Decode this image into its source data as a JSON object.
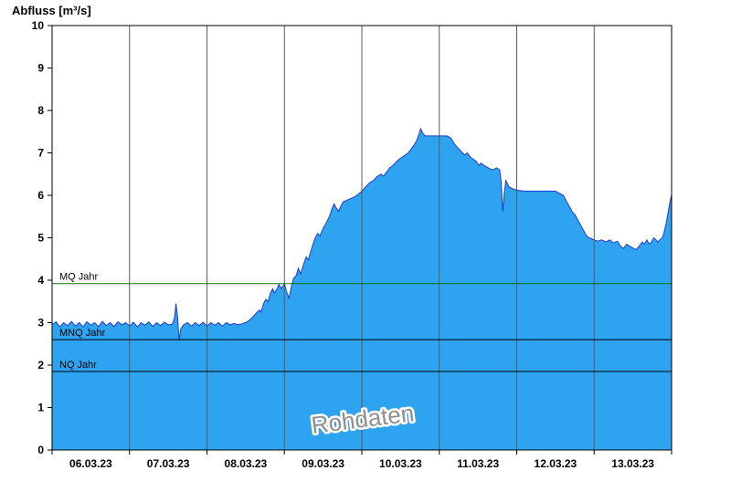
{
  "colors": {
    "area_fill": "#2ea3f0",
    "area_line": "#1f3cc8",
    "grid_line": "#5a5a5a",
    "axis": "#000000",
    "mq_line": "#007700",
    "ref_line": "#000000",
    "watermark": "#8f8f8f"
  },
  "chart_data": {
    "type": "area",
    "title": "Abfluss [m³/s]",
    "ylabel": "Abfluss [m³/s]",
    "xlabel": "",
    "ylim": [
      0,
      10
    ],
    "yticks": [
      0,
      1,
      2,
      3,
      4,
      5,
      6,
      7,
      8,
      9,
      10
    ],
    "x_tick_labels": [
      "06.03.23",
      "07.03.23",
      "08.03.23",
      "09.03.23",
      "10.03.23",
      "11.03.23",
      "12.03.23",
      "13.03.23"
    ],
    "x_unit": "days from 06.03.23 00:00",
    "grid": "vertical-daily",
    "legend": "none",
    "watermark": "Rohdaten",
    "reference_lines": [
      {
        "label": "MQ Jahr",
        "value": 3.92,
        "color": "#007700"
      },
      {
        "label": "MNQ Jahr",
        "value": 2.6,
        "color": "#000000"
      },
      {
        "label": "NQ Jahr",
        "value": 1.85,
        "color": "#000000"
      }
    ],
    "series": [
      {
        "name": "Abfluss Rohdaten",
        "points": [
          [
            0.0,
            2.95
          ],
          [
            0.05,
            3.02
          ],
          [
            0.1,
            2.9
          ],
          [
            0.15,
            3.0
          ],
          [
            0.2,
            2.93
          ],
          [
            0.25,
            3.03
          ],
          [
            0.3,
            2.92
          ],
          [
            0.35,
            3.0
          ],
          [
            0.4,
            2.9
          ],
          [
            0.45,
            3.02
          ],
          [
            0.5,
            2.94
          ],
          [
            0.55,
            3.0
          ],
          [
            0.6,
            2.9
          ],
          [
            0.65,
            3.03
          ],
          [
            0.7,
            2.93
          ],
          [
            0.75,
            3.0
          ],
          [
            0.8,
            2.91
          ],
          [
            0.85,
            3.02
          ],
          [
            0.9,
            2.95
          ],
          [
            0.95,
            3.0
          ],
          [
            1.0,
            2.92
          ],
          [
            1.05,
            3.01
          ],
          [
            1.1,
            2.9
          ],
          [
            1.15,
            3.0
          ],
          [
            1.2,
            2.94
          ],
          [
            1.25,
            3.02
          ],
          [
            1.3,
            2.91
          ],
          [
            1.35,
            3.0
          ],
          [
            1.4,
            2.93
          ],
          [
            1.45,
            3.01
          ],
          [
            1.5,
            2.95
          ],
          [
            1.55,
            2.96
          ],
          [
            1.58,
            3.1
          ],
          [
            1.6,
            3.45
          ],
          [
            1.62,
            3.15
          ],
          [
            1.64,
            2.58
          ],
          [
            1.66,
            2.85
          ],
          [
            1.7,
            2.95
          ],
          [
            1.75,
            3.0
          ],
          [
            1.8,
            2.92
          ],
          [
            1.85,
            3.0
          ],
          [
            1.9,
            2.93
          ],
          [
            1.95,
            3.01
          ],
          [
            2.0,
            2.92
          ],
          [
            2.05,
            3.0
          ],
          [
            2.1,
            2.94
          ],
          [
            2.15,
            3.0
          ],
          [
            2.2,
            2.92
          ],
          [
            2.25,
            3.0
          ],
          [
            2.3,
            2.95
          ],
          [
            2.35,
            2.98
          ],
          [
            2.4,
            2.95
          ],
          [
            2.45,
            2.97
          ],
          [
            2.5,
            3.0
          ],
          [
            2.55,
            3.06
          ],
          [
            2.6,
            3.15
          ],
          [
            2.65,
            3.25
          ],
          [
            2.68,
            3.3
          ],
          [
            2.7,
            3.25
          ],
          [
            2.73,
            3.45
          ],
          [
            2.76,
            3.55
          ],
          [
            2.79,
            3.5
          ],
          [
            2.82,
            3.7
          ],
          [
            2.85,
            3.8
          ],
          [
            2.87,
            3.7
          ],
          [
            2.9,
            3.78
          ],
          [
            2.93,
            3.9
          ],
          [
            2.96,
            3.8
          ],
          [
            3.0,
            3.92
          ],
          [
            3.03,
            3.72
          ],
          [
            3.06,
            3.58
          ],
          [
            3.09,
            3.85
          ],
          [
            3.12,
            4.05
          ],
          [
            3.15,
            4.1
          ],
          [
            3.18,
            4.28
          ],
          [
            3.21,
            4.15
          ],
          [
            3.25,
            4.38
          ],
          [
            3.28,
            4.55
          ],
          [
            3.31,
            4.48
          ],
          [
            3.34,
            4.68
          ],
          [
            3.37,
            4.85
          ],
          [
            3.4,
            5.0
          ],
          [
            3.43,
            5.1
          ],
          [
            3.46,
            5.05
          ],
          [
            3.5,
            5.22
          ],
          [
            3.54,
            5.35
          ],
          [
            3.58,
            5.5
          ],
          [
            3.61,
            5.65
          ],
          [
            3.64,
            5.8
          ],
          [
            3.67,
            5.7
          ],
          [
            3.7,
            5.62
          ],
          [
            3.73,
            5.75
          ],
          [
            3.76,
            5.85
          ],
          [
            3.8,
            5.88
          ],
          [
            3.85,
            5.92
          ],
          [
            3.9,
            5.96
          ],
          [
            3.95,
            6.02
          ],
          [
            4.0,
            6.1
          ],
          [
            4.05,
            6.2
          ],
          [
            4.1,
            6.3
          ],
          [
            4.15,
            6.35
          ],
          [
            4.2,
            6.45
          ],
          [
            4.25,
            6.5
          ],
          [
            4.28,
            6.45
          ],
          [
            4.32,
            6.55
          ],
          [
            4.36,
            6.65
          ],
          [
            4.4,
            6.7
          ],
          [
            4.44,
            6.78
          ],
          [
            4.48,
            6.85
          ],
          [
            4.52,
            6.9
          ],
          [
            4.56,
            6.95
          ],
          [
            4.6,
            7.0
          ],
          [
            4.64,
            7.1
          ],
          [
            4.68,
            7.2
          ],
          [
            4.71,
            7.3
          ],
          [
            4.74,
            7.45
          ],
          [
            4.76,
            7.57
          ],
          [
            4.79,
            7.45
          ],
          [
            4.82,
            7.4
          ],
          [
            4.9,
            7.4
          ],
          [
            5.0,
            7.4
          ],
          [
            5.1,
            7.4
          ],
          [
            5.15,
            7.35
          ],
          [
            5.2,
            7.2
          ],
          [
            5.25,
            7.1
          ],
          [
            5.3,
            7.0
          ],
          [
            5.33,
            6.95
          ],
          [
            5.36,
            7.0
          ],
          [
            5.4,
            6.9
          ],
          [
            5.44,
            6.85
          ],
          [
            5.48,
            6.8
          ],
          [
            5.51,
            6.7
          ],
          [
            5.54,
            6.76
          ],
          [
            5.58,
            6.7
          ],
          [
            5.62,
            6.66
          ],
          [
            5.66,
            6.62
          ],
          [
            5.7,
            6.6
          ],
          [
            5.74,
            6.65
          ],
          [
            5.78,
            6.6
          ],
          [
            5.8,
            6.3
          ],
          [
            5.82,
            5.62
          ],
          [
            5.84,
            6.05
          ],
          [
            5.86,
            6.35
          ],
          [
            5.9,
            6.2
          ],
          [
            5.95,
            6.15
          ],
          [
            6.0,
            6.12
          ],
          [
            6.1,
            6.1
          ],
          [
            6.2,
            6.1
          ],
          [
            6.3,
            6.1
          ],
          [
            6.4,
            6.1
          ],
          [
            6.5,
            6.1
          ],
          [
            6.55,
            6.05
          ],
          [
            6.6,
            6.0
          ],
          [
            6.63,
            5.9
          ],
          [
            6.66,
            5.8
          ],
          [
            6.69,
            5.7
          ],
          [
            6.72,
            5.6
          ],
          [
            6.75,
            5.55
          ],
          [
            6.78,
            5.45
          ],
          [
            6.81,
            5.35
          ],
          [
            6.84,
            5.25
          ],
          [
            6.87,
            5.15
          ],
          [
            6.9,
            5.05
          ],
          [
            6.93,
            5.0
          ],
          [
            6.96,
            4.98
          ],
          [
            7.0,
            4.95
          ],
          [
            7.05,
            4.92
          ],
          [
            7.1,
            4.95
          ],
          [
            7.15,
            4.9
          ],
          [
            7.2,
            4.95
          ],
          [
            7.25,
            4.88
          ],
          [
            7.3,
            4.92
          ],
          [
            7.34,
            4.8
          ],
          [
            7.38,
            4.75
          ],
          [
            7.42,
            4.85
          ],
          [
            7.46,
            4.8
          ],
          [
            7.5,
            4.76
          ],
          [
            7.54,
            4.72
          ],
          [
            7.58,
            4.8
          ],
          [
            7.62,
            4.9
          ],
          [
            7.65,
            4.85
          ],
          [
            7.68,
            4.95
          ],
          [
            7.71,
            4.85
          ],
          [
            7.74,
            4.9
          ],
          [
            7.77,
            5.0
          ],
          [
            7.8,
            4.95
          ],
          [
            7.82,
            4.9
          ],
          [
            7.85,
            4.95
          ],
          [
            7.88,
            5.0
          ],
          [
            7.9,
            5.1
          ],
          [
            7.93,
            5.35
          ],
          [
            7.96,
            5.65
          ],
          [
            7.98,
            5.85
          ],
          [
            8.0,
            6.02
          ]
        ]
      }
    ]
  }
}
